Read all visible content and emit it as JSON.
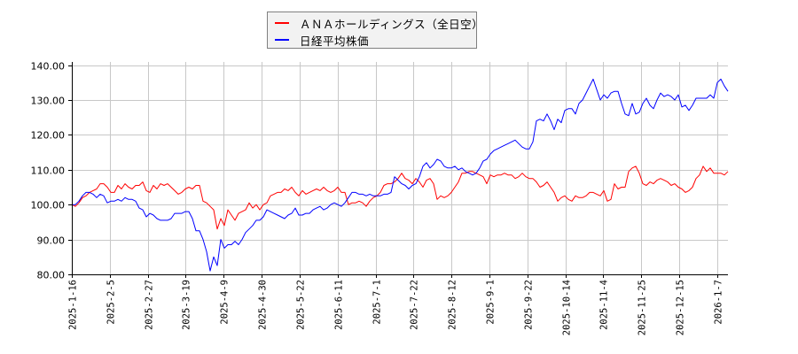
{
  "chart_data": {
    "type": "line",
    "title": "",
    "xlabel": "",
    "ylabel": "",
    "ylim": [
      80,
      140
    ],
    "yticks": [
      "80.00",
      "90.00",
      "100.00",
      "110.00",
      "120.00",
      "130.00",
      "140.00"
    ],
    "xticks": [
      "2025-1-16",
      "2025-2-5",
      "2025-2-27",
      "2025-3-19",
      "2025-4-9",
      "2025-4-30",
      "2025-5-22",
      "2025-6-11",
      "2025-7-1",
      "2025-7-22",
      "2025-8-12",
      "2025-9-1",
      "2025-9-22",
      "2025-10-14",
      "2025-11-4",
      "2025-11-25",
      "2025-12-15",
      "2026-1-7"
    ],
    "grid": true,
    "legend_position": "top-center",
    "x_positions": [
      0,
      1.4,
      2.8,
      4.2,
      5.6,
      7,
      8.4,
      9.8,
      11.2,
      12.6,
      14,
      15.4,
      16.8,
      18.2,
      19.6,
      21,
      22.4,
      23.8,
      25.2,
      26.6,
      28,
      29.4,
      30.8,
      32.2,
      33.6,
      35,
      36.4,
      37.8,
      39.2,
      40.6,
      42,
      43.4,
      44.8,
      46.2,
      47.6,
      49,
      50.4,
      51.8,
      53.2,
      54.6,
      56,
      57.4,
      58.8,
      60.2,
      61.6,
      63,
      64.4,
      65.8,
      67.2,
      68.6,
      70,
      71.4,
      72.8,
      74.2,
      75.6,
      77,
      78.4,
      79.8,
      81.2,
      82.6,
      84,
      85.4,
      86.8,
      88.2,
      89.6,
      91,
      92.4,
      93.8,
      95.2,
      96.6,
      98,
      99.4,
      100.8,
      102.2,
      103.6,
      105,
      106.4,
      107.8,
      109.2,
      110.6,
      112,
      113.4,
      114.8,
      116.2,
      117.6,
      119,
      120.4,
      121.8,
      123.2,
      124.6,
      126,
      127.4,
      128.8,
      130.2,
      131.6,
      133,
      134.4,
      135.8,
      137.2,
      138.6,
      140,
      141.4,
      142.8,
      144.2,
      145.6,
      147,
      148.4,
      149.8,
      151.2,
      152.6,
      154,
      155.4,
      156.8,
      158.2,
      159.6,
      161,
      162.4,
      163.8,
      165.2,
      166.6,
      168,
      169.4,
      170.8,
      172.2,
      173.6,
      175,
      176.4,
      177.8,
      179.2,
      180.6,
      182,
      183.4,
      184.8,
      186.2,
      187.6,
      189,
      190.4,
      191.8,
      193.2,
      194.6,
      196,
      197.4,
      198.8,
      200.2,
      201.6,
      203,
      204.4,
      205.8,
      207.2,
      208.6,
      210,
      211.4,
      212.8,
      214.2,
      215.6,
      217,
      218.4,
      219.8,
      221.2,
      222.6,
      224,
      225.4,
      226.8,
      228.2,
      229.6,
      231,
      232.4,
      233.8,
      235.2,
      236.6,
      238,
      239.4,
      240.8,
      242.2,
      243.6,
      245,
      246.4,
      247.8,
      249.2,
      250.6,
      252,
      253.4,
      254.8,
      256.2,
      257.6,
      259
    ],
    "series": [
      {
        "name": "ＡＮＡホールディングス（全日空）",
        "color": "#ff0000",
        "values": [
          100,
          99.5,
          100.5,
          102,
          102.5,
          103.5,
          104,
          104.5,
          106,
          106,
          105,
          103.5,
          103.5,
          105.5,
          104.5,
          106,
          105,
          104.5,
          105.5,
          105.5,
          106.5,
          104,
          103.5,
          105.5,
          104.5,
          106,
          105.5,
          106,
          105,
          104,
          103,
          103.5,
          104.5,
          105,
          104.5,
          105.5,
          105.5,
          101,
          100.5,
          99.5,
          98.5,
          93,
          96,
          94,
          98.5,
          97,
          95.5,
          97.5,
          98,
          98.5,
          100.5,
          99,
          100,
          98.5,
          100,
          100.5,
          102.5,
          103,
          103.5,
          103.5,
          104.5,
          104,
          105,
          103.5,
          102.5,
          104,
          103,
          103.5,
          104,
          104.5,
          104,
          105,
          104,
          103.5,
          104,
          105,
          103.5,
          103.5,
          100,
          100.5,
          100.5,
          101,
          100.5,
          99.5,
          101,
          102,
          102.5,
          103.5,
          105.5,
          106,
          106,
          106.5,
          107.5,
          109,
          107.5,
          107,
          106,
          107.5,
          106.5,
          105,
          107,
          107.5,
          106,
          101.5,
          102.5,
          102,
          102.5,
          103.5,
          105,
          106.5,
          109,
          109,
          109.5,
          109.5,
          109,
          108.5,
          108,
          106,
          108.5,
          108,
          108.5,
          108.5,
          109,
          108.5,
          108.5,
          107.5,
          108,
          109,
          108,
          107.5,
          107.5,
          106.5,
          105,
          105.5,
          106.5,
          105,
          103.5,
          101,
          102,
          102.5,
          101.5,
          101,
          102.5,
          102,
          102,
          102.5,
          103.5,
          103.5,
          103,
          102.5,
          104,
          101,
          101.5,
          106,
          104.5,
          105,
          105,
          109.5,
          110.5,
          111,
          109,
          106,
          105.5,
          106.5,
          106,
          107,
          107.5,
          107,
          106.5,
          105.5,
          106,
          105,
          104.5,
          103.5,
          104,
          105,
          107.5,
          108.5,
          111,
          109.5,
          110.5,
          109,
          109,
          109,
          108.5,
          109.5,
          110.5,
          111,
          112,
          111.5,
          110.5
        ],
        "values_note": "index relative to 2025-1-16 = 100"
      },
      {
        "name": "日経平均株価",
        "color": "#0000ff",
        "values": [
          100,
          100,
          101,
          102.5,
          103.5,
          103.5,
          103,
          102,
          103,
          102.5,
          100.5,
          101,
          101,
          101.5,
          101,
          102,
          101.5,
          101.5,
          101,
          99,
          98.5,
          96.5,
          97.5,
          97,
          96,
          95.5,
          95.5,
          95.5,
          96,
          97.5,
          97.5,
          97.5,
          98,
          98,
          96,
          92.5,
          92.5,
          90,
          86.5,
          81,
          85,
          82.5,
          90,
          87.5,
          88.5,
          88.5,
          89.5,
          88.5,
          90,
          92,
          93,
          94,
          95.5,
          95.5,
          96.5,
          98.5,
          98,
          97.5,
          97,
          96.5,
          96,
          97,
          97.5,
          99,
          97,
          97,
          97.5,
          97.5,
          98.5,
          99,
          99.5,
          98.5,
          99,
          100,
          100.5,
          100,
          99.5,
          100.5,
          102,
          103.5,
          103.5,
          103,
          103,
          102.5,
          103,
          102.5,
          102.5,
          102.5,
          103,
          103,
          103.5,
          108,
          107,
          106,
          105.5,
          104.5,
          105.5,
          106,
          108,
          111,
          112,
          110.5,
          111.5,
          113,
          112.5,
          111,
          110.5,
          110.5,
          111,
          110,
          110.5,
          109.5,
          109,
          108.5,
          109,
          110.5,
          112.5,
          113,
          114.5,
          115.5,
          116,
          116.5,
          117,
          117.5,
          118,
          118.5,
          117.5,
          116.5,
          116,
          116,
          118,
          124,
          124.5,
          124,
          126,
          124,
          121.5,
          124.5,
          123.5,
          127,
          127.5,
          127.5,
          126,
          129,
          130,
          132,
          134,
          136,
          133,
          130,
          131.5,
          130.5,
          132,
          132.5,
          132.5,
          129,
          126,
          125.5,
          129,
          126,
          126.5,
          129,
          130.5,
          128.5,
          127.5,
          130,
          132,
          131,
          131.5,
          131,
          130,
          131.5,
          128,
          128.5,
          127,
          128.5,
          130.5,
          130.5,
          130.5,
          130.5,
          131.5,
          130.5,
          135,
          136,
          134,
          132.5,
          136.5,
          140.5,
          140
        ],
        "values_note": "index relative to 2025-1-16 = 100"
      }
    ]
  },
  "legend": {
    "items": [
      {
        "label": "ＡＮＡホールディングス（全日空）",
        "color": "#ff0000"
      },
      {
        "label": "日経平均株価",
        "color": "#0000ff"
      }
    ]
  }
}
